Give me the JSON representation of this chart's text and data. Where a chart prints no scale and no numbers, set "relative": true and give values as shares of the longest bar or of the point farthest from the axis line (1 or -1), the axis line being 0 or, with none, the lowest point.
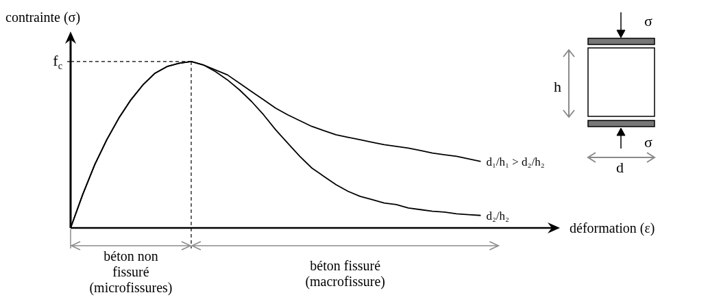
{
  "chart_data": {
    "type": "line",
    "relative": true,
    "xlabel": "déformation (ε)",
    "ylabel": "contrainte (σ)",
    "line_style": "solid",
    "categories": [
      null,
      null,
      null,
      null,
      null,
      null,
      null,
      null,
      null,
      null,
      null,
      null,
      null,
      null,
      null,
      null,
      null,
      null,
      null,
      null,
      null,
      null,
      null,
      null,
      null,
      null,
      null,
      null,
      null,
      null,
      null,
      null,
      null,
      null,
      null,
      null,
      null,
      null,
      null,
      null,
      null
    ],
    "series": [
      {
        "name": "d₁/h₁ > d₂/h₂",
        "color": "#000000",
        "values": [
          0,
          0.2,
          0.38,
          0.53,
          0.66,
          0.77,
          0.86,
          0.93,
          0.97,
          0.99,
          1,
          0.98,
          0.95,
          0.92,
          0.87,
          0.82,
          0.77,
          0.72,
          0.68,
          0.645,
          0.61,
          0.585,
          0.56,
          0.545,
          0.53,
          0.515,
          0.5,
          0.49,
          0.48,
          0.465,
          0.45,
          0.44,
          0.43,
          0.415,
          0.4,
          null,
          null,
          null,
          null,
          null,
          null
        ]
      },
      {
        "name": "d₂/h₂",
        "color": "#000000",
        "values": [
          0,
          0.2,
          0.38,
          0.53,
          0.66,
          0.77,
          0.86,
          0.93,
          0.97,
          0.99,
          1,
          0.98,
          0.94,
          0.89,
          0.83,
          0.76,
          0.68,
          0.59,
          0.51,
          0.43,
          0.36,
          0.31,
          0.26,
          0.22,
          0.19,
          0.17,
          0.15,
          0.14,
          0.12,
          0.11,
          0.1,
          0.095,
          0.085,
          0.08,
          0.075,
          null,
          null,
          null,
          null,
          null,
          null
        ]
      }
    ],
    "ref_lines": [
      {
        "axis": "y",
        "value": 1,
        "label": "f$_{c}$",
        "line_style": "dashed",
        "color": "#000000"
      }
    ],
    "annotations": [
      "béton non fissuré (microfissures)",
      "béton fissuré (macrofissure)",
      "σ",
      "h",
      "σ",
      "d"
    ]
  }
}
